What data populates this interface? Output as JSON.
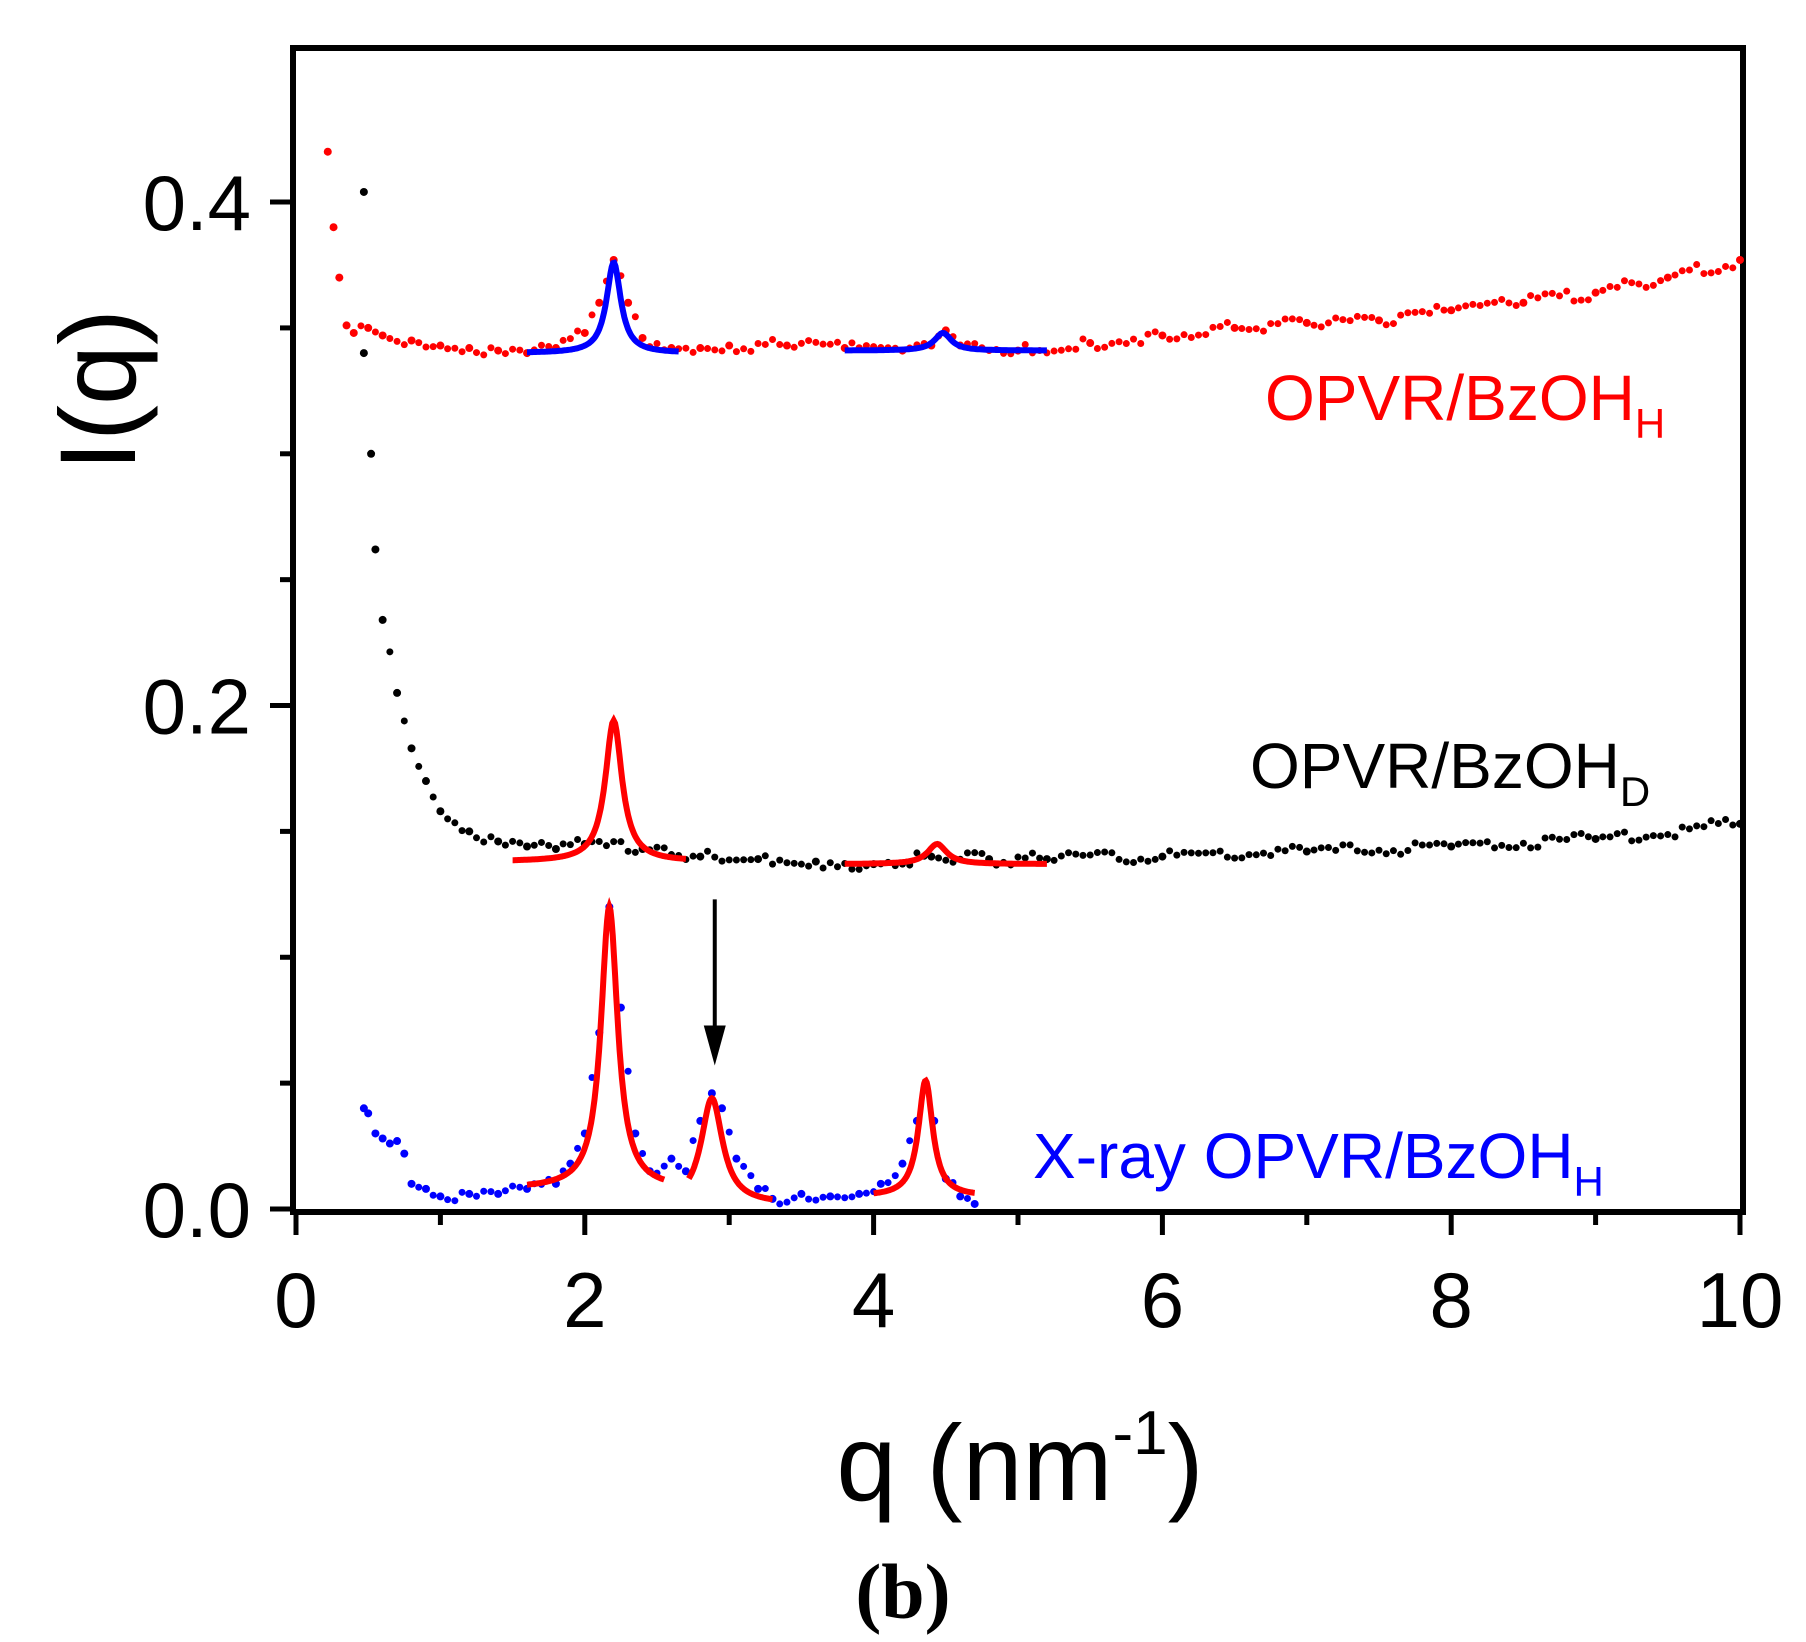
{
  "chart_data": {
    "type": "scatter",
    "title": "",
    "xlabel": "q (nm",
    "xlabel_sup": "-1",
    "xlabel_close": ")",
    "ylabel": "I(q)",
    "xlim": [
      0,
      10
    ],
    "ylim": [
      0,
      0.46
    ],
    "x_ticks": [
      0,
      2,
      4,
      6,
      8,
      10
    ],
    "y_ticks": [
      0.0,
      0.2,
      0.4
    ],
    "x_tick_labels": [
      "0",
      "2",
      "4",
      "6",
      "8",
      "10"
    ],
    "y_tick_labels": [
      "0.0",
      "0.2",
      "0.4"
    ],
    "panel_label": "(b)",
    "annotation": {
      "type": "arrow",
      "x": 2.9,
      "y_from": 0.123,
      "y_to": 0.057
    },
    "series": [
      {
        "name": "OPVR/BzOHH",
        "label_main": "OPVR/BzOH",
        "label_sub": "H",
        "color": "#ff0000",
        "fit_color": "#0000ff",
        "points": [
          [
            0.22,
            0.42
          ],
          [
            0.26,
            0.39
          ],
          [
            0.3,
            0.37
          ],
          [
            0.35,
            0.351
          ],
          [
            0.4,
            0.348
          ],
          [
            0.5,
            0.35
          ],
          [
            0.6,
            0.347
          ],
          [
            0.8,
            0.345
          ],
          [
            1.0,
            0.343
          ],
          [
            1.2,
            0.342
          ],
          [
            1.4,
            0.341
          ],
          [
            1.6,
            0.34
          ],
          [
            1.8,
            0.342
          ],
          [
            2.0,
            0.348
          ],
          [
            2.1,
            0.36
          ],
          [
            2.2,
            0.377
          ],
          [
            2.3,
            0.36
          ],
          [
            2.4,
            0.346
          ],
          [
            2.6,
            0.342
          ],
          [
            2.8,
            0.342
          ],
          [
            3.0,
            0.343
          ],
          [
            3.4,
            0.343
          ],
          [
            3.8,
            0.342
          ],
          [
            4.2,
            0.341
          ],
          [
            4.4,
            0.343
          ],
          [
            4.5,
            0.349
          ],
          [
            4.6,
            0.343
          ],
          [
            5.0,
            0.341
          ],
          [
            5.5,
            0.344
          ],
          [
            6.0,
            0.347
          ],
          [
            6.5,
            0.35
          ],
          [
            7.0,
            0.352
          ],
          [
            7.5,
            0.353
          ],
          [
            8.0,
            0.357
          ],
          [
            8.5,
            0.36
          ],
          [
            9.0,
            0.364
          ],
          [
            9.5,
            0.37
          ],
          [
            10.0,
            0.377
          ]
        ],
        "fits": [
          {
            "x0": 1.6,
            "x1": 2.65,
            "base": 0.34,
            "center": 2.2,
            "height": 0.036,
            "width": 0.06
          },
          {
            "x0": 3.8,
            "x1": 5.2,
            "base": 0.341,
            "center": 4.48,
            "height": 0.007,
            "width": 0.07
          }
        ]
      },
      {
        "name": "OPVR/BzOHD",
        "label_main": "OPVR/BzOH",
        "label_sub": "D",
        "color": "#000000",
        "fit_color": "#ff0000",
        "points": [
          [
            0.47,
            0.404
          ],
          [
            0.47,
            0.34
          ],
          [
            0.52,
            0.3
          ],
          [
            0.55,
            0.262
          ],
          [
            0.6,
            0.234
          ],
          [
            0.7,
            0.205
          ],
          [
            0.8,
            0.183
          ],
          [
            0.9,
            0.17
          ],
          [
            1.0,
            0.158
          ],
          [
            1.2,
            0.15
          ],
          [
            1.4,
            0.146
          ],
          [
            1.6,
            0.144
          ],
          [
            1.8,
            0.143
          ],
          [
            2.0,
            0.145
          ],
          [
            2.4,
            0.143
          ],
          [
            2.8,
            0.14
          ],
          [
            3.2,
            0.139
          ],
          [
            3.6,
            0.138
          ],
          [
            4.0,
            0.137
          ],
          [
            4.4,
            0.14
          ],
          [
            4.8,
            0.139
          ],
          [
            5.2,
            0.139
          ],
          [
            6.0,
            0.14
          ],
          [
            7.0,
            0.142
          ],
          [
            8.0,
            0.144
          ],
          [
            9.0,
            0.147
          ],
          [
            10.0,
            0.153
          ]
        ],
        "fits": [
          {
            "x0": 1.5,
            "x1": 2.7,
            "base": 0.138,
            "center": 2.2,
            "height": 0.056,
            "width": 0.07
          },
          {
            "x0": 3.8,
            "x1": 5.2,
            "base": 0.137,
            "center": 4.44,
            "height": 0.008,
            "width": 0.08
          }
        ]
      },
      {
        "name": "X-ray OPVR/BzOHH",
        "label_main": "X-ray OPVR/BzOH",
        "label_sub": "H",
        "color": "#0000ff",
        "fit_color": "#ff0000",
        "points": [
          [
            0.47,
            0.04
          ],
          [
            0.5,
            0.038
          ],
          [
            0.55,
            0.03
          ],
          [
            0.6,
            0.028
          ],
          [
            0.65,
            0.026
          ],
          [
            0.7,
            0.027
          ],
          [
            0.75,
            0.022
          ],
          [
            0.8,
            0.01
          ],
          [
            0.9,
            0.008
          ],
          [
            1.0,
            0.005
          ],
          [
            1.2,
            0.006
          ],
          [
            1.4,
            0.006
          ],
          [
            1.6,
            0.008
          ],
          [
            1.8,
            0.01
          ],
          [
            1.9,
            0.018
          ],
          [
            2.0,
            0.03
          ],
          [
            2.1,
            0.07
          ],
          [
            2.17,
            0.12
          ],
          [
            2.25,
            0.08
          ],
          [
            2.35,
            0.03
          ],
          [
            2.45,
            0.015
          ],
          [
            2.6,
            0.02
          ],
          [
            2.7,
            0.015
          ],
          [
            2.8,
            0.035
          ],
          [
            2.88,
            0.046
          ],
          [
            2.95,
            0.04
          ],
          [
            3.05,
            0.02
          ],
          [
            3.2,
            0.008
          ],
          [
            3.3,
            0.004
          ],
          [
            3.5,
            0.006
          ],
          [
            3.7,
            0.005
          ],
          [
            3.9,
            0.006
          ],
          [
            4.05,
            0.01
          ],
          [
            4.2,
            0.018
          ],
          [
            4.3,
            0.035
          ],
          [
            4.36,
            0.05
          ],
          [
            4.42,
            0.035
          ],
          [
            4.5,
            0.012
          ],
          [
            4.6,
            0.005
          ],
          [
            4.7,
            0.002
          ]
        ],
        "fits": [
          {
            "x0": 1.6,
            "x1": 2.55,
            "base": 0.008,
            "center": 2.17,
            "height": 0.112,
            "width": 0.07
          },
          {
            "x0": 2.72,
            "x1": 3.3,
            "base": 0.002,
            "center": 2.88,
            "height": 0.042,
            "width": 0.09
          },
          {
            "x0": 4.0,
            "x1": 4.7,
            "base": 0.005,
            "center": 4.36,
            "height": 0.046,
            "width": 0.06
          }
        ]
      }
    ]
  }
}
